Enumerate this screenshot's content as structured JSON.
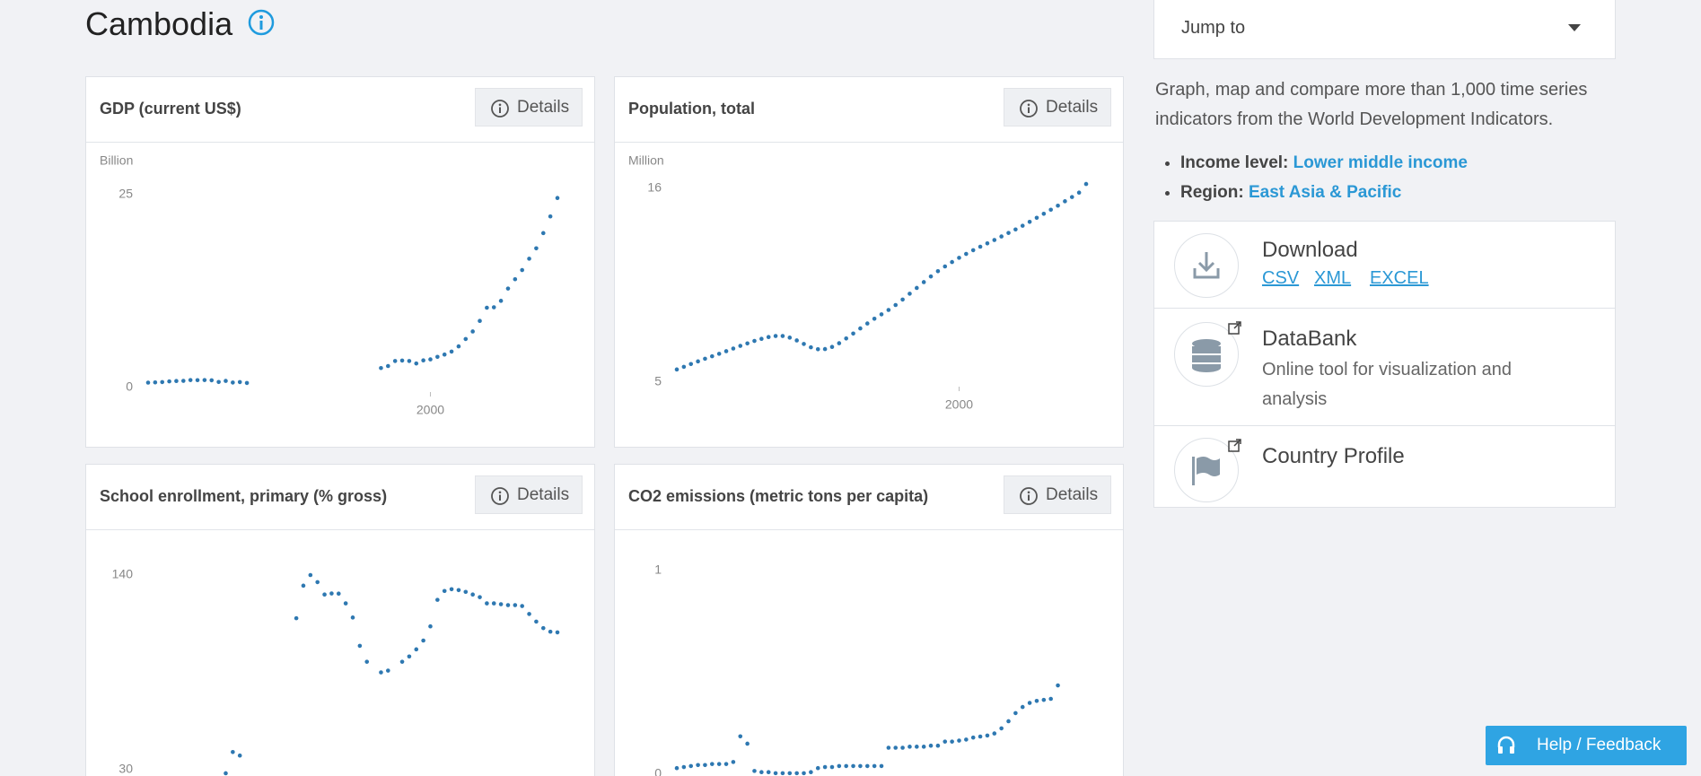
{
  "header": {
    "title": "Cambodia"
  },
  "jump_to": "Jump to",
  "sidebar": {
    "description": "Graph, map and compare more than 1,000 time series indicators from the World Development Indicators.",
    "income_label": "Income level:",
    "income_value": "Lower middle income",
    "region_label": "Region:",
    "region_value": "East Asia & Pacific",
    "download": {
      "title": "Download",
      "links": [
        "CSV",
        "XML",
        "EXCEL"
      ]
    },
    "databank": {
      "title": "DataBank",
      "description": "Online tool for visualization and analysis"
    },
    "country_profile": {
      "title": "Country Profile"
    }
  },
  "help_button": "Help / Feedback",
  "chart_data": [
    {
      "type": "line",
      "title": "GDP (current US$)",
      "details_button": "Details",
      "unit_label": "Billion",
      "color": "#2e78b1",
      "x": [
        1960,
        1961,
        1962,
        1963,
        1964,
        1965,
        1966,
        1967,
        1968,
        1969,
        1970,
        1971,
        1972,
        1973,
        1974,
        1975,
        1976,
        1977,
        1978,
        1979,
        1980,
        1981,
        1982,
        1983,
        1984,
        1985,
        1986,
        1987,
        1988,
        1989,
        1990,
        1991,
        1992,
        1993,
        1994,
        1995,
        1996,
        1997,
        1998,
        1999,
        2000,
        2001,
        2002,
        2003,
        2004,
        2005,
        2006,
        2007,
        2008,
        2009,
        2010,
        2011,
        2012,
        2013,
        2014,
        2015,
        2016,
        2017,
        2018
      ],
      "values": [
        0.64,
        0.67,
        0.71,
        0.8,
        0.85,
        0.87,
        0.97,
        0.96,
        0.97,
        0.94,
        0.72,
        0.86,
        0.65,
        0.71,
        0.59,
        null,
        null,
        null,
        null,
        null,
        null,
        null,
        null,
        null,
        null,
        null,
        null,
        null,
        null,
        null,
        null,
        null,
        null,
        2.53,
        2.79,
        3.44,
        3.5,
        3.44,
        3.12,
        3.52,
        3.65,
        3.98,
        4.28,
        4.66,
        5.34,
        6.29,
        7.27,
        8.64,
        10.35,
        10.4,
        11.24,
        12.83,
        14.04,
        15.23,
        16.7,
        18.05,
        20.02,
        22.18,
        24.57
      ],
      "xlim": [
        1960,
        2018
      ],
      "xticks": [
        2000
      ],
      "ylim": [
        0,
        25
      ],
      "yticks": [
        0,
        25
      ]
    },
    {
      "type": "line",
      "title": "Population, total",
      "details_button": "Details",
      "unit_label": "Million",
      "color": "#2e78b1",
      "x": [
        1960,
        1961,
        1962,
        1963,
        1964,
        1965,
        1966,
        1967,
        1968,
        1969,
        1970,
        1971,
        1972,
        1973,
        1974,
        1975,
        1976,
        1977,
        1978,
        1979,
        1980,
        1981,
        1982,
        1983,
        1984,
        1985,
        1986,
        1987,
        1988,
        1989,
        1990,
        1991,
        1992,
        1993,
        1994,
        1995,
        1996,
        1997,
        1998,
        1999,
        2000,
        2001,
        2002,
        2003,
        2004,
        2005,
        2006,
        2007,
        2008,
        2009,
        2010,
        2011,
        2012,
        2013,
        2014,
        2015,
        2016,
        2017,
        2018
      ],
      "values": [
        5.72,
        5.87,
        6.03,
        6.18,
        6.33,
        6.47,
        6.61,
        6.76,
        6.91,
        7.06,
        7.2,
        7.34,
        7.46,
        7.56,
        7.62,
        7.62,
        7.53,
        7.37,
        7.17,
        6.98,
        6.87,
        6.88,
        7.0,
        7.21,
        7.48,
        7.76,
        8.05,
        8.33,
        8.6,
        8.85,
        9.1,
        9.38,
        9.69,
        10.02,
        10.35,
        10.68,
        11.0,
        11.3,
        11.57,
        11.82,
        12.06,
        12.28,
        12.49,
        12.69,
        12.88,
        13.07,
        13.27,
        13.47,
        13.67,
        13.88,
        14.1,
        14.33,
        14.56,
        14.79,
        15.02,
        15.27,
        15.51,
        15.76,
        16.25
      ],
      "xlim": [
        1960,
        2018
      ],
      "xticks": [
        2000
      ],
      "ylim": [
        5,
        16
      ],
      "yticks": [
        5,
        16
      ]
    },
    {
      "type": "line",
      "title": "School enrollment, primary (% gross)",
      "details_button": "Details",
      "color": "#2e78b1",
      "x": [
        1960,
        1961,
        1962,
        1963,
        1964,
        1965,
        1966,
        1967,
        1968,
        1969,
        1970,
        1971,
        1972,
        1973,
        1974,
        1975,
        1976,
        1977,
        1978,
        1979,
        1980,
        1981,
        1982,
        1983,
        1984,
        1985,
        1986,
        1987,
        1988,
        1989,
        1990,
        1991,
        1992,
        1993,
        1994,
        1995,
        1996,
        1997,
        1998,
        1999,
        2000,
        2001,
        2002,
        2003,
        2004,
        2005,
        2006,
        2007,
        2008,
        2009,
        2010,
        2011,
        2012,
        2013,
        2014,
        2015,
        2016,
        2017,
        2018
      ],
      "values": [
        null,
        null,
        null,
        null,
        null,
        null,
        null,
        null,
        null,
        null,
        null,
        28,
        40,
        38,
        null,
        null,
        null,
        null,
        null,
        null,
        null,
        115.6,
        134,
        140,
        136,
        129,
        129.6,
        129.5,
        124,
        116,
        100,
        91,
        null,
        85,
        86,
        null,
        91,
        94,
        98,
        103,
        111,
        126,
        131,
        132,
        131.5,
        130.5,
        129,
        127.5,
        124,
        124,
        123.5,
        123,
        123,
        122.5,
        118,
        113.7,
        110,
        108,
        107.6
      ],
      "xlim": [
        1960,
        2018
      ],
      "ylim": [
        30,
        140
      ],
      "yticks": [
        30,
        140
      ]
    },
    {
      "type": "line",
      "title": "CO2 emissions (metric tons per capita)",
      "details_button": "Details",
      "color": "#2e78b1",
      "x": [
        1960,
        1961,
        1962,
        1963,
        1964,
        1965,
        1966,
        1967,
        1968,
        1969,
        1970,
        1971,
        1972,
        1973,
        1974,
        1975,
        1976,
        1977,
        1978,
        1979,
        1980,
        1981,
        1982,
        1983,
        1984,
        1985,
        1986,
        1987,
        1988,
        1989,
        1990,
        1991,
        1992,
        1993,
        1994,
        1995,
        1996,
        1997,
        1998,
        1999,
        2000,
        2001,
        2002,
        2003,
        2004,
        2005,
        2006,
        2007,
        2008,
        2009,
        2010,
        2011,
        2012,
        2013,
        2014,
        2015,
        2016,
        2017,
        2018
      ],
      "values": [
        0.03,
        0.035,
        0.04,
        0.045,
        0.045,
        0.05,
        0.05,
        0.05,
        0.06,
        0.186,
        0.15,
        0.016,
        0.01,
        0.01,
        0.005,
        0.005,
        0.005,
        0.005,
        0.005,
        0.01,
        0.03,
        0.035,
        0.035,
        0.04,
        0.04,
        0.04,
        0.04,
        0.04,
        0.04,
        0.04,
        0.13,
        0.13,
        0.13,
        0.135,
        0.135,
        0.135,
        0.14,
        0.14,
        0.16,
        0.16,
        0.165,
        0.17,
        0.18,
        0.185,
        0.19,
        0.2,
        0.225,
        0.26,
        0.3,
        0.33,
        0.35,
        0.36,
        0.365,
        0.37,
        0.436,
        null,
        null,
        null,
        null
      ],
      "xlim": [
        1960,
        2018
      ],
      "ylim": [
        0,
        1
      ],
      "yticks": [
        0,
        1
      ]
    }
  ]
}
